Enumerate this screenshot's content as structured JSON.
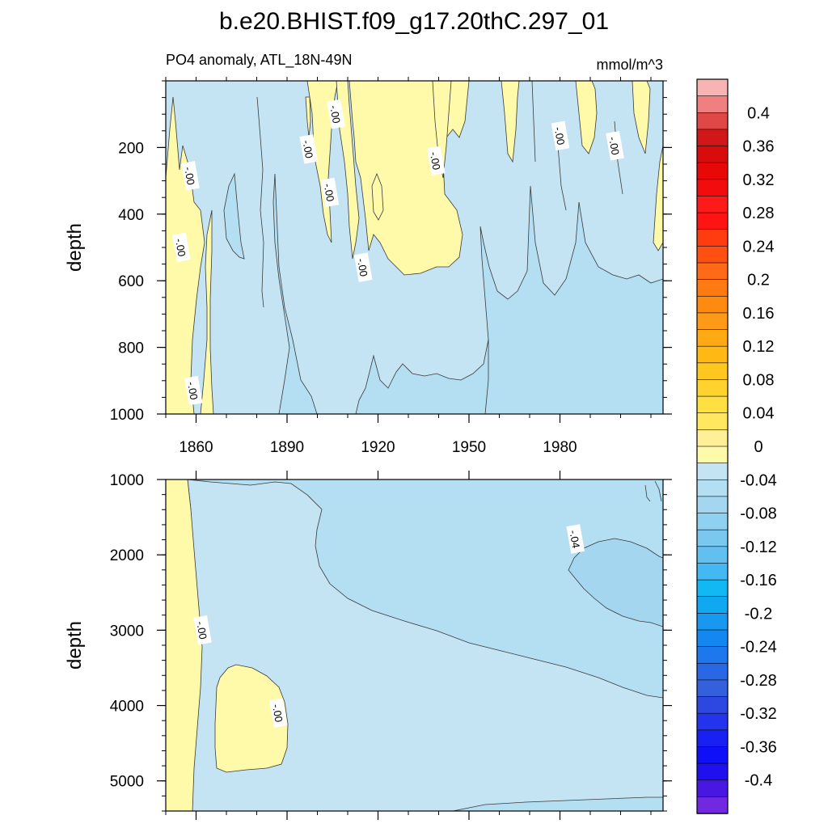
{
  "chart_data": {
    "type": "contour",
    "title": "b.e20.BHIST.f09_g17.20thC.297_01",
    "subtitle_left": "PO4 anomaly, ATL_18N-49N",
    "subtitle_right": "mmol/m^3",
    "x_tick_labels": [
      "1860",
      "1890",
      "1920",
      "1950",
      "1980"
    ],
    "x_ticks": [
      1860,
      1890,
      1920,
      1950,
      1980
    ],
    "xlim": [
      1850,
      2014
    ],
    "panels": [
      {
        "ylabel": "depth",
        "ylim": [
          0,
          1000
        ],
        "y_ticks": [
          200,
          400,
          600,
          800,
          1000
        ],
        "y_tick_labels": [
          "200",
          "400",
          "600",
          "800",
          "1000"
        ],
        "contour_labels": [
          {
            "text": "-.00",
            "x": 1858,
            "y": 285
          },
          {
            "text": "-.00",
            "x": 1855,
            "y": 500
          },
          {
            "text": "-.00",
            "x": 1859,
            "y": 930
          },
          {
            "text": "-.00",
            "x": 1897,
            "y": 205
          },
          {
            "text": "-.00",
            "x": 1904,
            "y": 335
          },
          {
            "text": "-.00",
            "x": 1906,
            "y": 100
          },
          {
            "text": "-.00",
            "x": 1915,
            "y": 560
          },
          {
            "text": "-.00",
            "x": 1939,
            "y": 240
          },
          {
            "text": "-.00",
            "x": 1980,
            "y": 165
          },
          {
            "text": "-.00",
            "x": 1998,
            "y": 195
          }
        ]
      },
      {
        "ylabel": "depth",
        "ylim": [
          1000,
          5400
        ],
        "y_ticks": [
          1000,
          2000,
          3000,
          4000,
          5000
        ],
        "y_tick_labels": [
          "1000",
          "2000",
          "3000",
          "4000",
          "5000"
        ],
        "contour_labels": [
          {
            "text": "-.00",
            "x": 1862,
            "y": 3000
          },
          {
            "text": "-.00",
            "x": 1887,
            "y": 4100
          },
          {
            "text": "-.04",
            "x": 1985,
            "y": 1790
          }
        ]
      }
    ],
    "colorbar": {
      "labels": [
        "0.4",
        "0.36",
        "0.32",
        "0.28",
        "0.24",
        "0.2",
        "0.16",
        "0.12",
        "0.08",
        "0.04",
        "0",
        "-0.04",
        "-0.08",
        "-0.12",
        "-0.16",
        "-0.2",
        "-0.24",
        "-0.28",
        "-0.32",
        "-0.36",
        "-0.4"
      ],
      "colors": [
        "#f8b4b4",
        "#f08080",
        "#e04848",
        "#d01818",
        "#d80c0c",
        "#e80808",
        "#f20c0c",
        "#ff1a1a",
        "#ff1414",
        "#fe3c10",
        "#ff5014",
        "#ff6a18",
        "#ff7a10",
        "#ff8a10",
        "#ff9a18",
        "#ffaa12",
        "#ffb814",
        "#ffc820",
        "#ffd230",
        "#ffe040",
        "#ffe860",
        "#fff098",
        "#fffaaa",
        "#c4e4f4",
        "#b4def2",
        "#a4d6f0",
        "#90d0f0",
        "#7ac8f0",
        "#62c0f0",
        "#44b8f2",
        "#12b8f4",
        "#10a8f0",
        "#1898f0",
        "#1488f0",
        "#1c78ec",
        "#2868e4",
        "#3460dc",
        "#2c48e0",
        "#2434ec",
        "#1820f4",
        "#1010f8",
        "#2010f0",
        "#4818e0",
        "#7028e0"
      ],
      "ymin": -0.44,
      "ymax": 0.44
    }
  }
}
